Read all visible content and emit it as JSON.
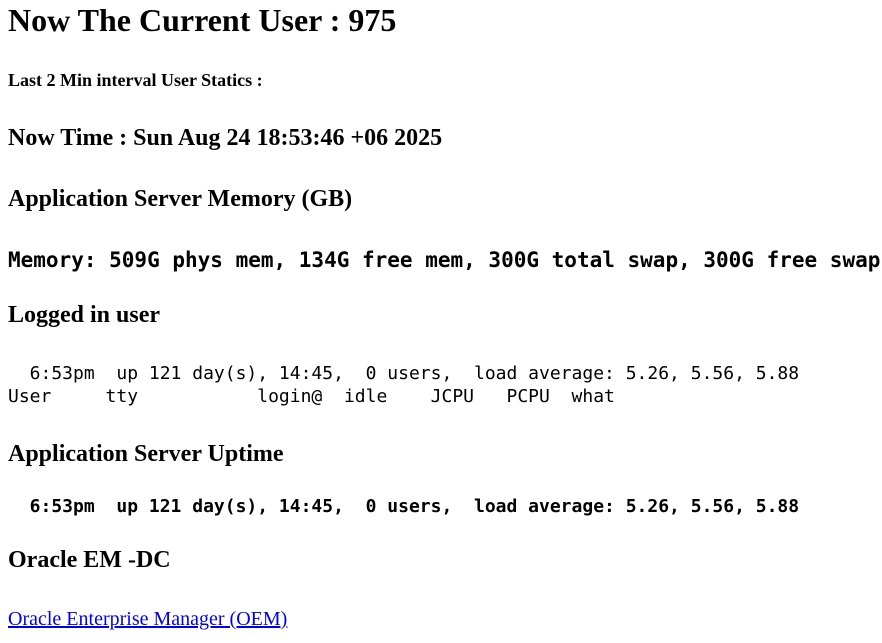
{
  "header": {
    "current_user_heading": "Now The Current User : 975",
    "stats_interval_heading": "Last 2 Min interval User Statics :",
    "now_time_heading": "Now Time : Sun Aug 24 18:53:46 +06 2025"
  },
  "memory": {
    "heading": "Application Server Memory (GB)",
    "output": "Memory: 509G phys mem, 134G free mem, 300G total swap, 300G free swap"
  },
  "logged_in_users": {
    "heading": "Logged in user",
    "output_line1": "  6:53pm  up 121 day(s), 14:45,  0 users,  load average: 5.26, 5.56, 5.88",
    "output_line2": "User     tty           login@  idle    JCPU   PCPU  what"
  },
  "uptime": {
    "heading": "Application Server Uptime",
    "output": "  6:53pm  up 121 day(s), 14:45,  0 users,  load average: 5.26, 5.56, 5.88"
  },
  "oracle_em": {
    "heading": "Oracle EM -DC",
    "link_label": "Oracle Enterprise Manager (OEM)"
  },
  "colors": {
    "link": "#0000EE",
    "text": "#000000"
  }
}
